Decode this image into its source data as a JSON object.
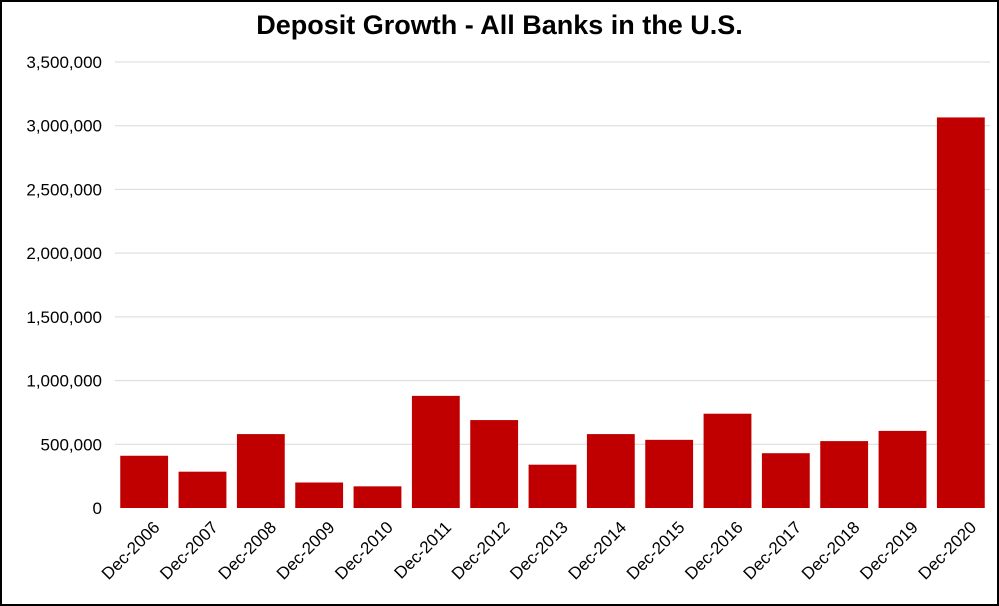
{
  "chart_data": {
    "type": "bar",
    "title": "Deposit Growth - All Banks in the U.S.",
    "xlabel": "",
    "ylabel": "",
    "categories": [
      "Dec-2006",
      "Dec-2007",
      "Dec-2008",
      "Dec-2009",
      "Dec-2010",
      "Dec-2011",
      "Dec-2012",
      "Dec-2013",
      "Dec-2014",
      "Dec-2015",
      "Dec-2016",
      "Dec-2017",
      "Dec-2018",
      "Dec-2019",
      "Dec-2020"
    ],
    "values": [
      410000,
      285000,
      580000,
      200000,
      170000,
      880000,
      690000,
      340000,
      580000,
      535000,
      740000,
      430000,
      525000,
      605000,
      3065000
    ],
    "ylim": [
      0,
      3500000
    ],
    "yticks": [
      0,
      500000,
      1000000,
      1500000,
      2000000,
      2500000,
      3000000,
      3500000
    ],
    "ytick_labels": [
      "0",
      "500,000",
      "1,000,000",
      "1,500,000",
      "2,000,000",
      "2,500,000",
      "3,000,000",
      "3,500,000"
    ],
    "bar_color": "#c00000",
    "grid_color": "#d9d9d9",
    "grid": true,
    "legend": "none"
  }
}
